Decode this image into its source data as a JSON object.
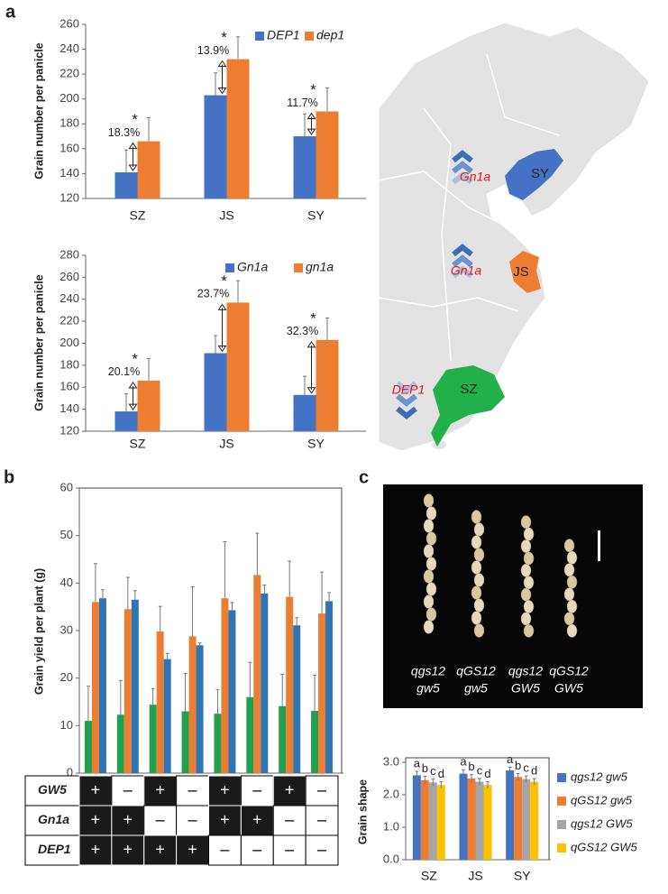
{
  "panel_labels": [
    "a",
    "b",
    "c"
  ],
  "chart_data": [
    {
      "type": "bar",
      "ylabel": "Grain number per panicle",
      "categories": [
        "SZ",
        "JS",
        "SY"
      ],
      "series": [
        {
          "name": "DEP1",
          "color": "#4472c4",
          "values": [
            141,
            203,
            170
          ],
          "errors": [
            18,
            18,
            18
          ]
        },
        {
          "name": "dep1",
          "color": "#ed7d31",
          "values": [
            166,
            232,
            190
          ],
          "errors": [
            19,
            18,
            19
          ]
        }
      ],
      "ylim": [
        120,
        260
      ],
      "yticks": [
        120,
        140,
        160,
        180,
        200,
        220,
        240,
        260
      ],
      "annotations": [
        {
          "marker": "*",
          "label": "18.3%"
        },
        {
          "marker": "*",
          "label": "13.9%"
        },
        {
          "marker": "*",
          "label": "11.7%"
        }
      ]
    },
    {
      "type": "bar",
      "ylabel": "Grain number per panicle",
      "categories": [
        "SZ",
        "JS",
        "SY"
      ],
      "series": [
        {
          "name": "Gn1a",
          "color": "#4472c4",
          "values": [
            138,
            191,
            153
          ],
          "errors": [
            16,
            16,
            17
          ]
        },
        {
          "name": "gn1a",
          "color": "#ed7d31",
          "values": [
            166,
            237,
            203
          ],
          "errors": [
            20,
            20,
            20
          ]
        }
      ],
      "ylim": [
        120,
        280
      ],
      "yticks": [
        120,
        140,
        160,
        180,
        200,
        220,
        240,
        260,
        280
      ],
      "annotations": [
        {
          "marker": "*",
          "label": "20.1%"
        },
        {
          "marker": "*",
          "label": "23.7%"
        },
        {
          "marker": "*",
          "label": "32.3%"
        }
      ]
    },
    {
      "type": "bar",
      "ylabel": "Grain yield per plant (g)",
      "categories": [
        null,
        null,
        null,
        null,
        null,
        null,
        null,
        null
      ],
      "series": [
        {
          "color": "#22a04b",
          "values": [
            11,
            12.3,
            14.4,
            13,
            12.5,
            16,
            14.1,
            13.1
          ],
          "errors": [
            7.3,
            7.2,
            3.4,
            8,
            5.1,
            7.3,
            6.7,
            7.5
          ]
        },
        {
          "color": "#ed7d31",
          "values": [
            36,
            34.5,
            29.8,
            28.8,
            36.8,
            41.7,
            37.1,
            33.6
          ],
          "errors": [
            8.1,
            6.7,
            5.3,
            10.4,
            11.9,
            8.8,
            7.5,
            8.7
          ]
        },
        {
          "color": "#2e75b6",
          "values": [
            36.8,
            36.5,
            24,
            26.9,
            34.3,
            37.8,
            31.1,
            36.2
          ],
          "errors": [
            1.8,
            1.9,
            1.2,
            0.5,
            1.6,
            1.8,
            1.6,
            1.8
          ]
        }
      ],
      "ylim": [
        0,
        60
      ],
      "yticks": [
        0,
        10,
        20,
        30,
        40,
        50,
        60
      ]
    },
    {
      "type": "bar",
      "ylabel": "Grain shape",
      "categories": [
        "SZ",
        "JS",
        "SY"
      ],
      "series": [
        {
          "name": "qgs12 gw5",
          "color": "#4472c4",
          "values": [
            2.6,
            2.65,
            2.75
          ],
          "errors": [
            0.12,
            0.12,
            0.1
          ],
          "letters": [
            "a",
            "a",
            "a"
          ]
        },
        {
          "name": "qGS12 gw5",
          "color": "#ed7d31",
          "values": [
            2.45,
            2.5,
            2.55
          ],
          "errors": [
            0.12,
            0.12,
            0.1
          ],
          "letters": [
            "b",
            "b",
            "b"
          ]
        },
        {
          "name": "qgs12 GW5",
          "color": "#a5a5a5",
          "values": [
            2.38,
            2.4,
            2.48
          ],
          "errors": [
            0.1,
            0.1,
            0.1
          ],
          "letters": [
            "c",
            "c",
            "c"
          ]
        },
        {
          "name": "qGS12 GW5",
          "color": "#ffc000",
          "values": [
            2.3,
            2.3,
            2.4
          ],
          "errors": [
            0.1,
            0.1,
            0.1
          ],
          "letters": [
            "d",
            "d",
            "d"
          ]
        }
      ],
      "ylim": [
        0,
        3
      ],
      "yticks": [
        {
          "value": 0,
          "label": "0.0"
        },
        {
          "value": 1,
          "label": "1.0"
        },
        {
          "value": 2,
          "label": "2.0"
        },
        {
          "value": 3,
          "label": "3.0"
        }
      ]
    }
  ],
  "map": {
    "provinces": [
      "SY",
      "JS",
      "SZ"
    ],
    "genes": [
      "Gn1a",
      "Gn1a",
      "DEP1"
    ]
  },
  "genotype_table": {
    "rows": [
      {
        "label": "GW5",
        "cells": [
          "+",
          "–",
          "+",
          "–",
          "+",
          "–",
          "+",
          "–"
        ]
      },
      {
        "label": "Gn1a",
        "cells": [
          "+",
          "+",
          "–",
          "–",
          "+",
          "+",
          "–",
          "–"
        ]
      },
      {
        "label": "DEP1",
        "cells": [
          "+",
          "+",
          "+",
          "+",
          "–",
          "–",
          "–",
          "–"
        ]
      }
    ]
  },
  "photo": {
    "labels": [
      [
        "qgs12",
        "gw5"
      ],
      [
        "qGS12",
        "gw5"
      ],
      [
        "qgs12",
        "GW5"
      ],
      [
        "qGS12",
        "GW5"
      ]
    ]
  }
}
